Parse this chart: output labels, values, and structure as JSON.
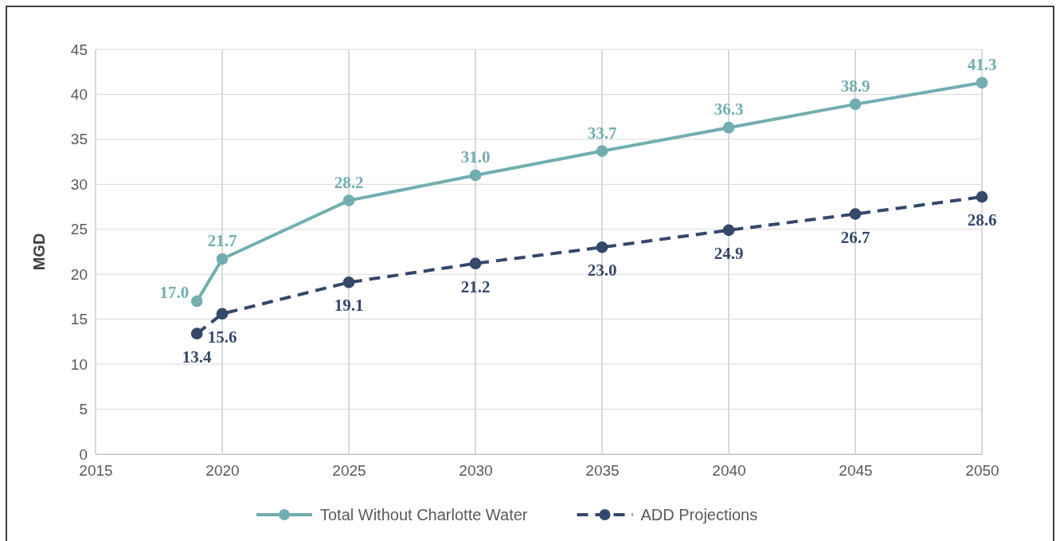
{
  "chart_data": {
    "type": "line",
    "ylabel": "MGD",
    "x": [
      2019,
      2020,
      2025,
      2030,
      2035,
      2040,
      2045,
      2050
    ],
    "series": [
      {
        "name": "Total Without Charlotte Water",
        "color": "#72aeb0",
        "values": [
          17.0,
          21.7,
          28.2,
          31.0,
          33.7,
          36.3,
          38.9,
          41.3
        ],
        "line_style": "solid",
        "value_labels": [
          "17.0",
          "21.7",
          "28.2",
          "31.0",
          "33.7",
          "36.3",
          "38.9",
          "41.3"
        ]
      },
      {
        "name": "ADD Projections",
        "color": "#34486a",
        "values": [
          13.4,
          15.6,
          19.1,
          21.2,
          23.0,
          24.9,
          26.7,
          28.6
        ],
        "line_style": "dashed",
        "value_labels": [
          "13.4",
          "15.6",
          "19.1",
          "21.2",
          "23.0",
          "24.9",
          "26.7",
          "28.6"
        ]
      }
    ],
    "xlim": [
      2015,
      2050
    ],
    "xticks": [
      2015,
      2020,
      2025,
      2030,
      2035,
      2040,
      2045,
      2050
    ],
    "ylim": [
      0,
      45
    ],
    "yticks": [
      0,
      5,
      10,
      15,
      20,
      25,
      30,
      35,
      40,
      45
    ],
    "grid": true,
    "marker": "circle",
    "legend": "bottom"
  }
}
